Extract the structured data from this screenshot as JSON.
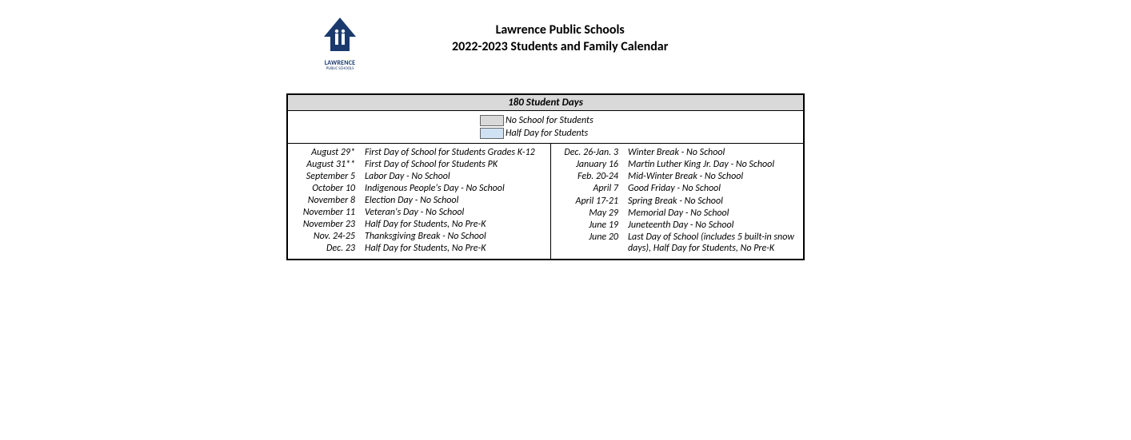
{
  "header": {
    "org": "Lawrence Public Schools",
    "subtitle": "2022-2023 Students and Family Calendar",
    "logo_text": "LAWRENCE",
    "logo_sub": "PUBLIC SCHOOLS",
    "logo_color": "#1a3a6e"
  },
  "table": {
    "banner": "180 Student Days",
    "legend": {
      "no_school": {
        "label": "No School for Students",
        "swatch_color": "#d9d9d9"
      },
      "half_day": {
        "label": "Half Day for Students",
        "swatch_color": "#cfe2f3"
      }
    },
    "border_color": "#000000",
    "left_col": [
      {
        "date": "August 29*",
        "event": "First Day of School for Students Grades K-12"
      },
      {
        "date": "August 31**",
        "event": "First Day of School for Students PK"
      },
      {
        "date": "September 5",
        "event": "Labor Day - No School"
      },
      {
        "date": "October 10",
        "event": "Indigenous People's Day - No School"
      },
      {
        "date": "November 8",
        "event": "Election Day - No School"
      },
      {
        "date": "November 11",
        "event": "Veteran's Day - No School"
      },
      {
        "date": "November 23",
        "event": "Half Day for Students, No Pre-K"
      },
      {
        "date": "Nov. 24-25",
        "event": "Thanksgiving Break - No School"
      },
      {
        "date": "Dec. 23",
        "event": "Half Day for Students, No Pre-K"
      }
    ],
    "right_col": [
      {
        "date": "Dec. 26-Jan. 3",
        "event": "Winter Break - No School"
      },
      {
        "date": "January 16",
        "event": "Martin Luther King Jr. Day - No School"
      },
      {
        "date": "Feb. 20-24",
        "event": "Mid-Winter Break - No School"
      },
      {
        "date": "April 7",
        "event": "Good Friday - No School"
      },
      {
        "date": "April 17-21",
        "event": "Spring Break - No School"
      },
      {
        "date": "May 29",
        "event": "Memorial Day - No School"
      },
      {
        "date": "June 19",
        "event": "Juneteenth Day - No School"
      },
      {
        "date": "June 20",
        "event": "Last Day of School (includes 5 built-in snow days), Half Day for Students, No Pre-K"
      }
    ]
  },
  "style": {
    "background": "#ffffff",
    "header_band_bg": "#d9d9d9",
    "font_body_pt": 12,
    "font_title_pt": 16
  }
}
